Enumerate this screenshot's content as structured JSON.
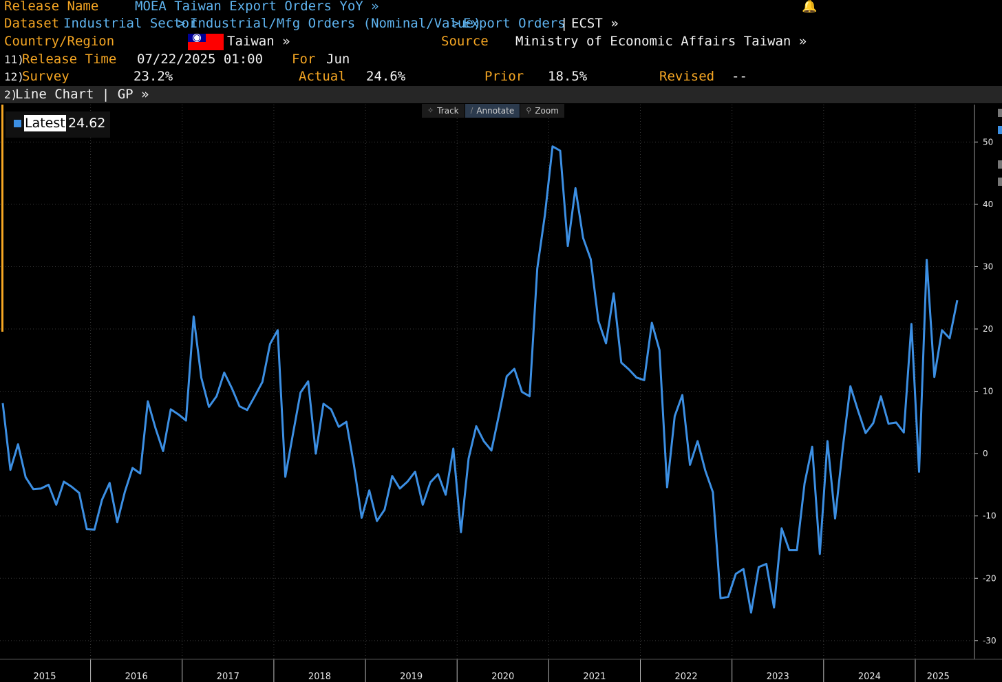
{
  "header": {
    "release_name_label": "Release Name",
    "release_name_value": "MOEA Taiwan Export Orders YoY »",
    "dataset_label": "Dataset",
    "dataset_crumb1": "Industrial Sector",
    "dataset_crumb2": "Industrial/Mfg Orders (Nominal/Value)",
    "dataset_crumb3": "Export Orders",
    "dataset_ticker": "ECST »",
    "country_label": "Country/Region",
    "country_value": "Taiwan »",
    "source_label": "Source",
    "source_value": "Ministry of Economic Affairs Taiwan »",
    "release_time_num": "11)",
    "release_time_label": "Release Time",
    "release_time_value": "07/22/2025 01:00",
    "for_label": "For",
    "for_value": "Jun",
    "survey_num": "12)",
    "survey_label": "Survey",
    "survey_value": "23.2%",
    "actual_label": "Actual",
    "actual_value": "24.6%",
    "prior_label": "Prior",
    "prior_value": "18.5%",
    "revised_label": "Revised",
    "revised_value": "--"
  },
  "chartbar": {
    "num": "2)",
    "label": "Line Chart | GP »"
  },
  "toolbar": {
    "track": "Track",
    "annotate": "Annotate",
    "zoom": "Zoom"
  },
  "legend": {
    "label": "Latest",
    "value": "24.62"
  },
  "colors": {
    "line": "#3c8fe3",
    "accent": "#f5a623",
    "link": "#5fb4f0"
  },
  "chart_data": {
    "type": "line",
    "title": "",
    "xlabel": "",
    "ylabel": "",
    "ylim": [
      -33,
      56
    ],
    "yticks": [
      50,
      40,
      30,
      20,
      10,
      0,
      -10,
      -20,
      -30
    ],
    "x_tick_labels": [
      "2015",
      "2016",
      "2017",
      "2018",
      "2019",
      "2020",
      "2021",
      "2022",
      "2023",
      "2024",
      "2025"
    ],
    "grid": true,
    "x_start": "2015-01",
    "x_end": "2025-06",
    "series": [
      {
        "name": "Latest",
        "color": "#3c8fe3",
        "values": [
          8.1,
          -2.6,
          1.5,
          -3.8,
          -5.7,
          -5.6,
          -5.0,
          -8.2,
          -4.5,
          -5.3,
          -6.3,
          -12.1,
          -12.2,
          -7.4,
          -4.7,
          -11.0,
          -6.1,
          -2.3,
          -3.2,
          8.4,
          4.1,
          0.4,
          7.1,
          6.3,
          5.3,
          22.0,
          12.2,
          7.5,
          9.2,
          13.0,
          10.5,
          7.6,
          7.0,
          9.2,
          11.5,
          17.6,
          19.8,
          -3.7,
          3.1,
          9.8,
          11.6,
          0.0,
          8.0,
          7.1,
          4.3,
          5.1,
          -1.9,
          -10.3,
          -5.9,
          -10.8,
          -9.0,
          -3.6,
          -5.6,
          -4.5,
          -2.9,
          -8.2,
          -4.6,
          -3.3,
          -6.6,
          0.8,
          -12.6,
          -0.8,
          4.4,
          2.0,
          0.5,
          6.3,
          12.4,
          13.6,
          9.9,
          9.2,
          29.7,
          38.3,
          49.3,
          48.6,
          33.3,
          42.6,
          34.6,
          31.2,
          21.3,
          17.7,
          25.7,
          14.6,
          13.5,
          12.2,
          11.8,
          21.0,
          16.6,
          -5.4,
          6.0,
          9.4,
          -1.8,
          2.0,
          -2.7,
          -6.2,
          -23.2,
          -23.0,
          -19.3,
          -18.5,
          -25.5,
          -18.2,
          -17.7,
          -24.7,
          -12.0,
          -15.5,
          -15.5,
          -4.8,
          1.1,
          -16.1,
          2.0,
          -10.4,
          0.9,
          10.8,
          6.9,
          3.3,
          4.9,
          9.2,
          4.8,
          5.0,
          3.4,
          20.8,
          -2.9,
          31.1,
          12.3,
          19.8,
          18.5,
          24.62
        ]
      }
    ]
  }
}
